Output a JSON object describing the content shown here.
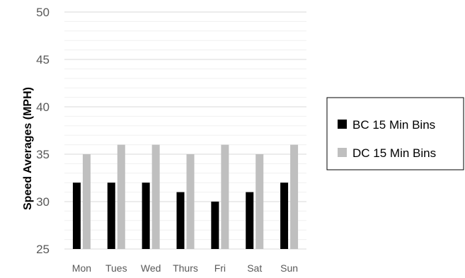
{
  "chart_data": {
    "type": "bar",
    "categories": [
      "Mon",
      "Tues",
      "Wed",
      "Thurs",
      "Fri",
      "Sat",
      "Sun"
    ],
    "series": [
      {
        "name": "BC 15 Min Bins",
        "values": [
          32,
          32,
          32,
          31,
          30,
          31,
          32
        ],
        "color": "#000000"
      },
      {
        "name": "DC 15 Min Bins",
        "values": [
          35,
          36,
          36,
          35,
          36,
          35,
          36
        ],
        "color": "#bfbfbf"
      }
    ],
    "title": "",
    "xlabel": "",
    "ylabel": "Speed Averages (MPH)",
    "ylim": [
      25,
      50
    ],
    "yticks": [
      25,
      30,
      35,
      40,
      45,
      50
    ],
    "minor_gridlines_step": 1,
    "grid": true,
    "legend_position": "right",
    "colors": {
      "major_grid": "#d9d9d9",
      "minor_grid": "#f0f0f0",
      "axis_text": "#595959",
      "axis_title": "#000000"
    }
  }
}
